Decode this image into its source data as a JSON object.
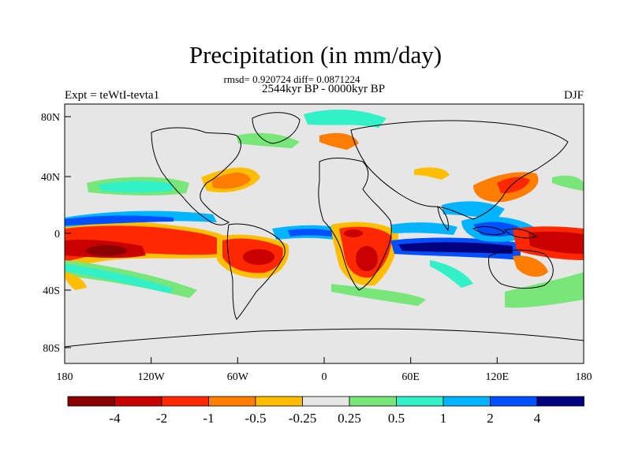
{
  "title": "Precipitation (in mm/day)",
  "stats": "rmsd= 0.920724 diff= 0.0871224",
  "period": "2544kyr BP - 0000kyr BP",
  "experiment": "Expt = teWtI-tevta1",
  "season": "DJF",
  "latitude_labels": [
    "80N",
    "40N",
    "0",
    "40S",
    "80S"
  ],
  "longitude_labels": [
    "180",
    "120W",
    "60W",
    "0",
    "60E",
    "120E",
    "180"
  ],
  "colorbar": {
    "labels": [
      "-4",
      "-2",
      "-1",
      "-0.5",
      "-0.25",
      "0.25",
      "0.5",
      "1",
      "2",
      "4"
    ],
    "colors": [
      "#8b0000",
      "#c80000",
      "#ff2800",
      "#ff7d00",
      "#ffbe00",
      "#e6e6e6",
      "#78e678",
      "#32f0c8",
      "#00b4ff",
      "#0050ff",
      "#000080"
    ]
  }
}
